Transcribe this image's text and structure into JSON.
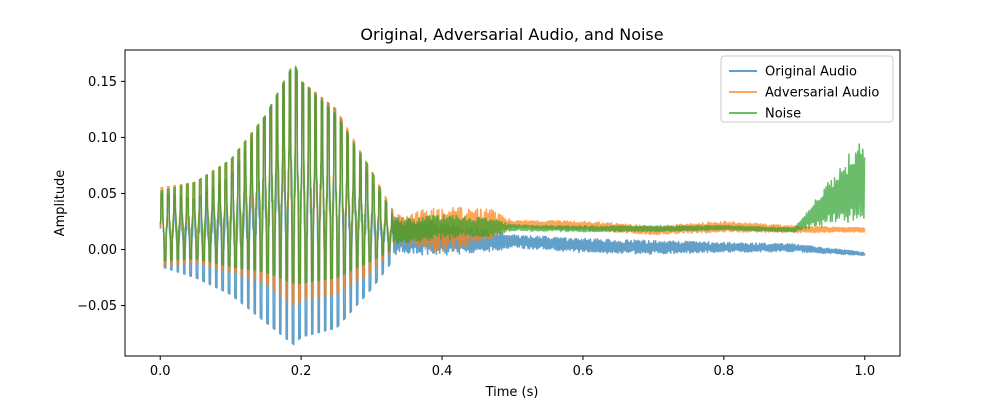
{
  "chart_data": {
    "type": "line",
    "title": "Original, Adversarial Audio, and Noise",
    "xlabel": "Time (s)",
    "ylabel": "Amplitude",
    "xlim": [
      -0.05,
      1.05
    ],
    "ylim": [
      -0.095,
      0.178
    ],
    "xticks": [
      0.0,
      0.2,
      0.4,
      0.6,
      0.8,
      1.0
    ],
    "xtick_labels": [
      "0.0",
      "0.2",
      "0.4",
      "0.6",
      "0.8",
      "1.0"
    ],
    "yticks": [
      -0.05,
      0.0,
      0.05,
      0.1,
      0.15
    ],
    "ytick_labels": [
      "−0.05",
      "0.00",
      "0.05",
      "0.10",
      "0.15"
    ],
    "grid": false,
    "legend_position": "top-right",
    "series": [
      {
        "name": "Original Audio",
        "color": "#1f77b4",
        "alpha": 0.7,
        "envelope": [
          [
            0.0,
            -0.015,
            0.05
          ],
          [
            0.05,
            -0.025,
            0.045
          ],
          [
            0.1,
            -0.04,
            0.065
          ],
          [
            0.15,
            -0.065,
            0.12
          ],
          [
            0.19,
            -0.085,
            0.165
          ],
          [
            0.2,
            -0.078,
            0.15
          ],
          [
            0.25,
            -0.07,
            0.125
          ],
          [
            0.3,
            -0.035,
            0.06
          ],
          [
            0.33,
            -0.01,
            0.035
          ],
          [
            0.4,
            -0.01,
            0.03
          ],
          [
            0.47,
            -0.005,
            0.02
          ],
          [
            0.5,
            0.0,
            0.015
          ],
          [
            0.6,
            -0.005,
            0.012
          ],
          [
            0.7,
            -0.006,
            0.01
          ],
          [
            0.8,
            -0.004,
            0.008
          ],
          [
            0.9,
            -0.003,
            0.006
          ],
          [
            1.0,
            -0.006,
            -0.002
          ]
        ]
      },
      {
        "name": "Adversarial Audio",
        "color": "#ff7f0e",
        "alpha": 0.7,
        "envelope": [
          [
            0.0,
            -0.015,
            0.055
          ],
          [
            0.05,
            -0.012,
            0.06
          ],
          [
            0.1,
            -0.02,
            0.08
          ],
          [
            0.15,
            -0.03,
            0.12
          ],
          [
            0.19,
            -0.05,
            0.165
          ],
          [
            0.2,
            -0.045,
            0.15
          ],
          [
            0.25,
            -0.04,
            0.125
          ],
          [
            0.3,
            -0.02,
            0.07
          ],
          [
            0.33,
            0.0,
            0.035
          ],
          [
            0.4,
            -0.01,
            0.045
          ],
          [
            0.47,
            0.005,
            0.04
          ],
          [
            0.5,
            0.018,
            0.027
          ],
          [
            0.6,
            0.016,
            0.027
          ],
          [
            0.7,
            0.012,
            0.022
          ],
          [
            0.8,
            0.014,
            0.027
          ],
          [
            0.9,
            0.014,
            0.022
          ],
          [
            1.0,
            0.015,
            0.02
          ]
        ]
      },
      {
        "name": "Noise",
        "color": "#2ca02c",
        "alpha": 0.7,
        "envelope": [
          [
            0.0,
            -0.01,
            0.052
          ],
          [
            0.05,
            -0.008,
            0.06
          ],
          [
            0.1,
            -0.015,
            0.08
          ],
          [
            0.15,
            -0.02,
            0.12
          ],
          [
            0.19,
            -0.03,
            0.167
          ],
          [
            0.2,
            -0.03,
            0.15
          ],
          [
            0.25,
            -0.025,
            0.12
          ],
          [
            0.3,
            -0.01,
            0.07
          ],
          [
            0.33,
            0.0,
            0.03
          ],
          [
            0.4,
            0.005,
            0.035
          ],
          [
            0.47,
            0.01,
            0.03
          ],
          [
            0.5,
            0.016,
            0.023
          ],
          [
            0.6,
            0.015,
            0.022
          ],
          [
            0.7,
            0.015,
            0.022
          ],
          [
            0.8,
            0.017,
            0.022
          ],
          [
            0.9,
            0.015,
            0.02
          ],
          [
            1.0,
            0.016,
            0.115
          ]
        ]
      }
    ]
  }
}
